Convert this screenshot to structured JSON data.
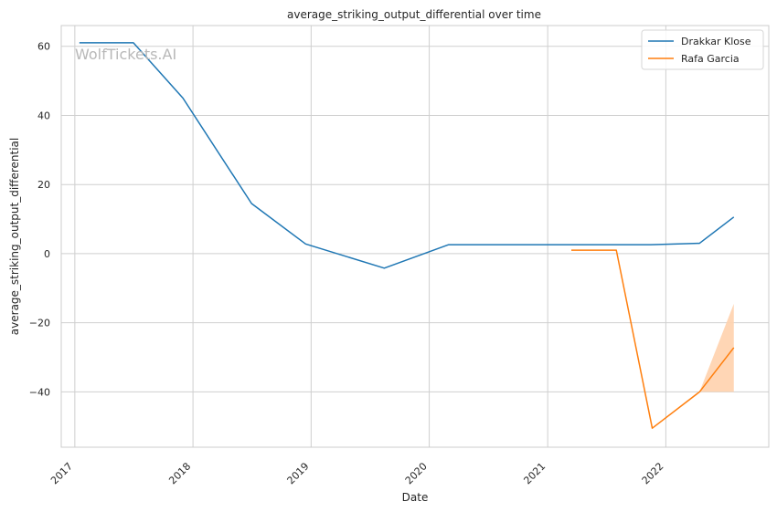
{
  "chart_data": {
    "type": "line",
    "title": "average_striking_output_differential over time",
    "xlabel": "Date",
    "ylabel": "average_striking_output_differential",
    "watermark": "WolfTickets.AI",
    "x_ticks": [
      "2017",
      "2018",
      "2019",
      "2020",
      "2021",
      "2022"
    ],
    "y_ticks": [
      -40,
      -20,
      0,
      20,
      40,
      60
    ],
    "xlim": [
      "2016-11-20",
      "2022-11-15"
    ],
    "ylim": [
      -56,
      66
    ],
    "grid": true,
    "legend_position": "top-right",
    "series": [
      {
        "name": "Drakkar Klose",
        "color": "#1f77b4",
        "points": [
          {
            "date": "2017-01-15",
            "y": 61
          },
          {
            "date": "2017-07-01",
            "y": 61
          },
          {
            "date": "2017-12-01",
            "y": 45
          },
          {
            "date": "2018-07-01",
            "y": 14.5
          },
          {
            "date": "2018-12-15",
            "y": 2.8
          },
          {
            "date": "2019-08-15",
            "y": -4.2
          },
          {
            "date": "2020-03-01",
            "y": 2.6
          },
          {
            "date": "2021-11-15",
            "y": 2.6
          },
          {
            "date": "2022-04-15",
            "y": 3.0
          },
          {
            "date": "2022-07-30",
            "y": 10.6
          }
        ]
      },
      {
        "name": "Rafa Garcia",
        "color": "#ff7f0e",
        "band_color": "#ffd2ad",
        "points": [
          {
            "date": "2021-03-15",
            "y": 1.0
          },
          {
            "date": "2021-08-01",
            "y": 1.0
          },
          {
            "date": "2021-11-20",
            "y": -50.5
          },
          {
            "date": "2022-04-15",
            "y": -40
          },
          {
            "date": "2022-07-30",
            "y": -27.2
          }
        ],
        "band": [
          {
            "date": "2022-04-15",
            "low": -40,
            "high": -40
          },
          {
            "date": "2022-07-30",
            "low": -40,
            "high": -14.5
          }
        ]
      }
    ]
  }
}
